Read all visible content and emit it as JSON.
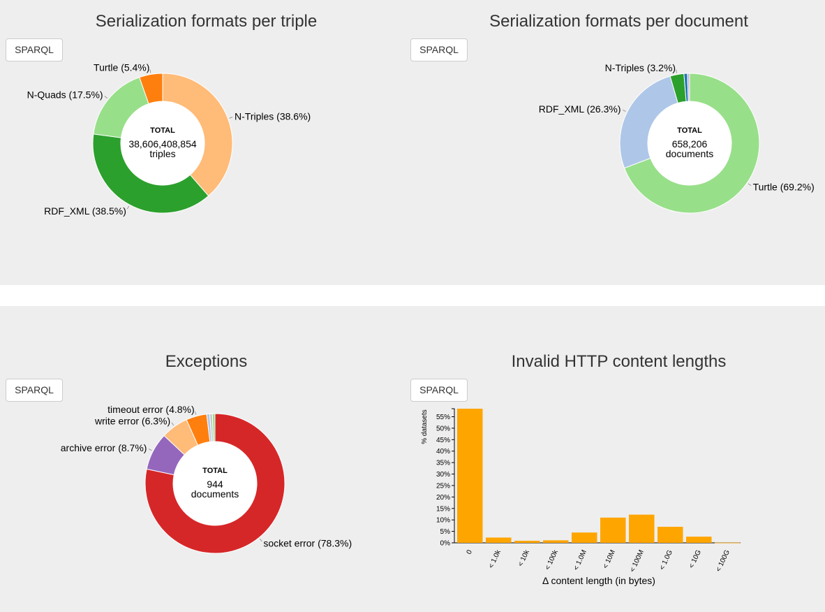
{
  "panels": [
    {
      "title": "Serialization formats per triple",
      "button": "SPARQL"
    },
    {
      "title": "Serialization formats per document",
      "button": "SPARQL"
    },
    {
      "title": "Exceptions",
      "button": "SPARQL"
    },
    {
      "title": "Invalid HTTP content lengths",
      "button": "SPARQL"
    }
  ],
  "chart_data": [
    {
      "type": "pie",
      "variant": "donut",
      "title": "Serialization formats per triple",
      "center": {
        "label": "TOTAL",
        "value": "38,606,408,854",
        "unit": "triples"
      },
      "slices": [
        {
          "label": "N-Triples (38.6%)",
          "value": 38.6,
          "color": "#ffbb78"
        },
        {
          "label": "RDF_XML (38.5%)",
          "value": 38.5,
          "color": "#2ca02c"
        },
        {
          "label": "N-Quads (17.5%)",
          "value": 17.5,
          "color": "#98df8a"
        },
        {
          "label": "Turtle (5.4%)",
          "value": 5.4,
          "color": "#ff7f0e"
        }
      ]
    },
    {
      "type": "pie",
      "variant": "donut",
      "title": "Serialization formats per document",
      "center": {
        "label": "TOTAL",
        "value": "658,206",
        "unit": "documents"
      },
      "slices": [
        {
          "label": "Turtle (69.2%)",
          "value": 69.2,
          "color": "#98df8a"
        },
        {
          "label": "RDF_XML (26.3%)",
          "value": 26.3,
          "color": "#aec7e8"
        },
        {
          "label": "N-Triples (3.2%)",
          "value": 3.2,
          "color": "#2ca02c"
        },
        {
          "label": "",
          "value": 0.8,
          "color": "#1f77b4"
        },
        {
          "label": "",
          "value": 0.5,
          "color": "#c5b0d5"
        }
      ]
    },
    {
      "type": "pie",
      "variant": "donut",
      "title": "Exceptions",
      "center": {
        "label": "TOTAL",
        "value": "944",
        "unit": "documents"
      },
      "slices": [
        {
          "label": "socket error (78.3%)",
          "value": 78.3,
          "color": "#d62728"
        },
        {
          "label": "archive error (8.7%)",
          "value": 8.7,
          "color": "#9467bd"
        },
        {
          "label": "write error (6.3%)",
          "value": 6.3,
          "color": "#ffbb78"
        },
        {
          "label": "timeout error (4.8%)",
          "value": 4.8,
          "color": "#ff7f0e"
        },
        {
          "label": "",
          "value": 0.7,
          "color": "#aec7e8"
        },
        {
          "label": "",
          "value": 0.6,
          "color": "#c7c7c7"
        },
        {
          "label": "",
          "value": 0.6,
          "color": "#98df8a"
        }
      ]
    },
    {
      "type": "bar",
      "title": "Invalid HTTP content lengths",
      "categories": [
        "0",
        "< 1.0k",
        "< 10k",
        "< 100k",
        "< 1.0M",
        "< 10M",
        "< 100M",
        "< 1.0G",
        "< 10G",
        "< 100G"
      ],
      "values": [
        58.5,
        2.3,
        0.9,
        1.1,
        4.5,
        11.0,
        12.3,
        7.0,
        2.7,
        0.1
      ],
      "color": "#ffa500",
      "xlabel": "Δ content length (in bytes)",
      "ylabel": "% datasets",
      "ylim": [
        0,
        58.5
      ],
      "yticks": [
        "0%",
        "5%",
        "10%",
        "15%",
        "20%",
        "25%",
        "30%",
        "35%",
        "40%",
        "45%",
        "50%",
        "55%"
      ]
    }
  ]
}
